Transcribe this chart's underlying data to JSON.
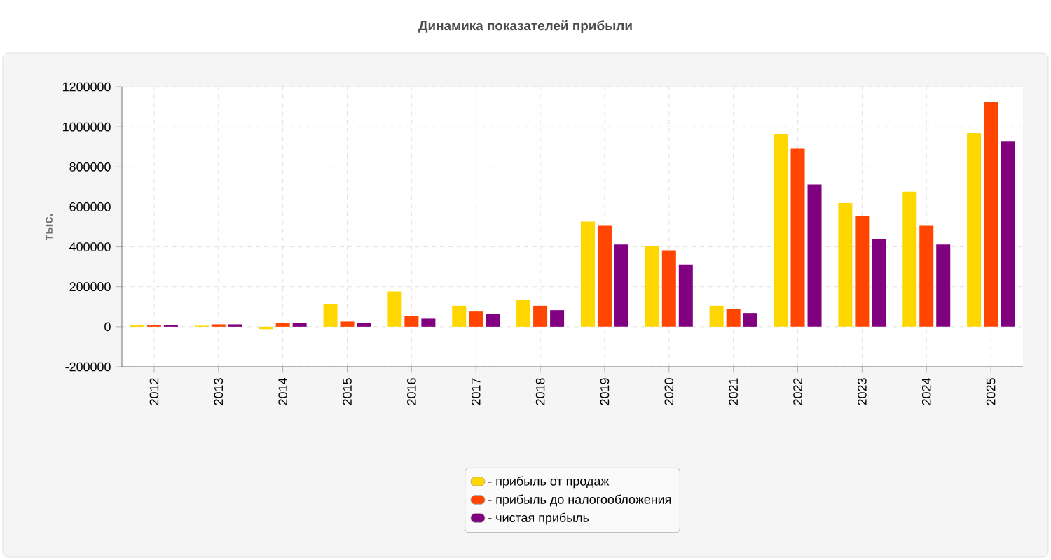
{
  "chart_data": {
    "type": "bar",
    "title": "Динамика показателей прибыли",
    "ylabel": "тыс.",
    "categories": [
      "2012",
      "2013",
      "2014",
      "2015",
      "2016",
      "2017",
      "2018",
      "2019",
      "2020",
      "2021",
      "2022",
      "2023",
      "2024",
      "2025"
    ],
    "series": [
      {
        "name": "- прибыль от продаж",
        "color": "#ffd700",
        "values": [
          10000,
          5000,
          -12000,
          112000,
          176000,
          105000,
          133000,
          526000,
          405000,
          105000,
          962000,
          619000,
          676000,
          969000
        ]
      },
      {
        "name": "- прибыль до налогообложения",
        "color": "#ff4500",
        "values": [
          10000,
          12000,
          19000,
          26000,
          55000,
          76000,
          105000,
          505000,
          383000,
          90000,
          890000,
          555000,
          505000,
          1126000
        ]
      },
      {
        "name": "- чистая прибыль",
        "color": "#800080",
        "values": [
          10000,
          12000,
          19000,
          19000,
          40000,
          64000,
          83000,
          412000,
          312000,
          69000,
          712000,
          440000,
          412000,
          926000
        ]
      }
    ],
    "ylim": [
      -200000,
      1200000
    ],
    "yticks": [
      -200000,
      0,
      200000,
      400000,
      600000,
      800000,
      1000000,
      1200000
    ],
    "grid": true,
    "legend": "bottom"
  }
}
